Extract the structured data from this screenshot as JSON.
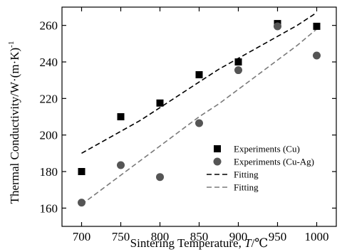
{
  "chart_data": {
    "type": "scatter",
    "title": "",
    "xlabel": "Sintering Temperature, T/℃",
    "xlabel_parts": {
      "prefix": "Sintering Temperature, ",
      "italic": "T",
      "suffix": "/℃"
    },
    "ylabel": "Thermal Conductivity/W·(m·K)⁻¹",
    "ylabel_parts": {
      "base": "Thermal Conductivity/W·(m·K)",
      "sup": "-1"
    },
    "xlim": [
      675,
      1025
    ],
    "ylim": [
      150,
      270
    ],
    "x_ticks": [
      700,
      750,
      800,
      850,
      900,
      950,
      1000
    ],
    "y_ticks": [
      160,
      180,
      200,
      220,
      240,
      260
    ],
    "grid": false,
    "legend_position": "right",
    "series": [
      {
        "name": "Experiments (Cu)",
        "kind": "marker",
        "marker": "square",
        "color": "#000000",
        "x": [
          700,
          750,
          800,
          850,
          900,
          950,
          1000
        ],
        "y": [
          180,
          210,
          217.5,
          233,
          240,
          261,
          259.5
        ]
      },
      {
        "name": "Experiments (Cu-Ag)",
        "kind": "marker",
        "marker": "circle",
        "color": "#555555",
        "x": [
          700,
          750,
          800,
          850,
          900,
          950,
          1000
        ],
        "y": [
          163,
          183.5,
          177,
          206.5,
          235.5,
          259.5,
          243.5
        ]
      },
      {
        "name": "Fitting",
        "kind": "line",
        "dash": "7,4",
        "color": "#000000",
        "x": [
          700,
          725,
          750,
          775,
          800,
          825,
          850,
          875,
          900,
          925,
          950,
          975,
          1000
        ],
        "y": [
          190,
          196,
          202,
          208,
          215,
          222,
          229,
          236,
          242,
          248,
          254,
          260,
          267
        ]
      },
      {
        "name": "Fitting",
        "kind": "line",
        "dash": "7,4",
        "color": "#7a7a7a",
        "x": [
          700,
          725,
          750,
          775,
          800,
          825,
          850,
          875,
          900,
          925,
          950,
          975,
          1000
        ],
        "y": [
          162,
          170,
          178,
          186,
          194,
          202,
          210,
          217,
          225,
          233,
          241,
          249,
          258
        ]
      }
    ]
  }
}
